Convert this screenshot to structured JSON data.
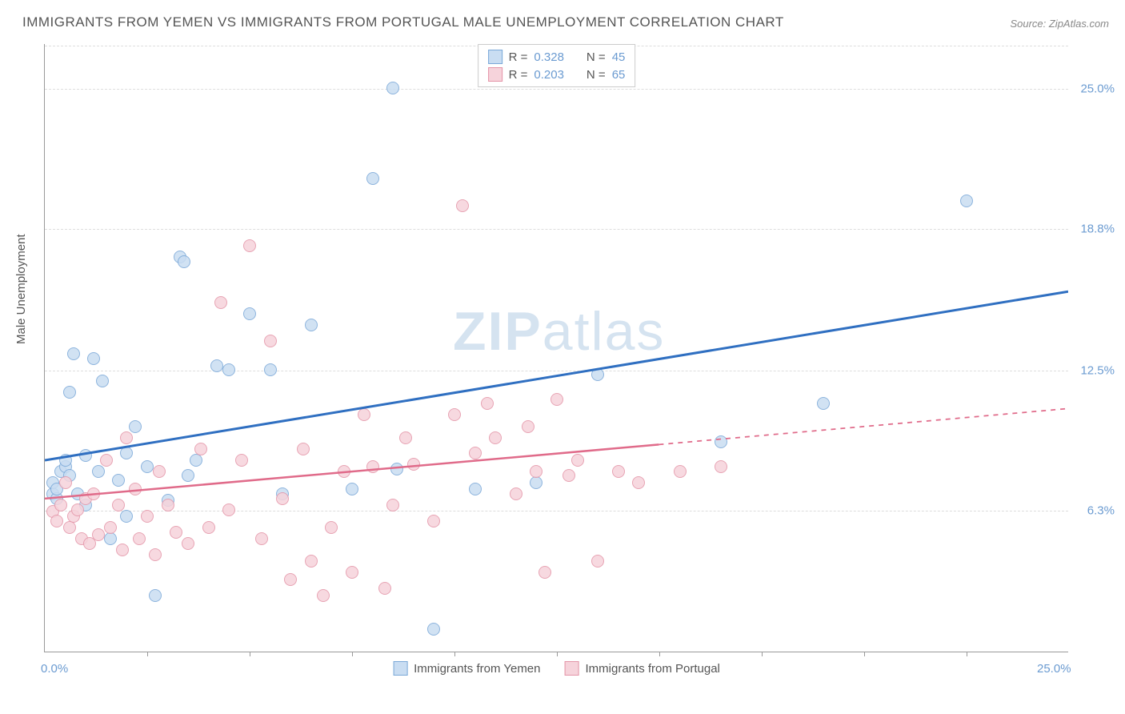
{
  "title": "IMMIGRANTS FROM YEMEN VS IMMIGRANTS FROM PORTUGAL MALE UNEMPLOYMENT CORRELATION CHART",
  "source": "Source: ZipAtlas.com",
  "watermark_prefix": "ZIP",
  "watermark_suffix": "atlas",
  "y_axis_label": "Male Unemployment",
  "chart": {
    "type": "scatter",
    "xlim": [
      0,
      25
    ],
    "ylim": [
      0,
      27
    ],
    "x_ticks": [
      0,
      25
    ],
    "x_tick_labels": [
      "0.0%",
      "25.0%"
    ],
    "y_grid": [
      6.3,
      12.5,
      18.8,
      25.0
    ],
    "y_tick_labels": [
      "6.3%",
      "12.5%",
      "18.8%",
      "25.0%"
    ],
    "x_minor_ticks": [
      2.5,
      5.0,
      7.5,
      10.0,
      12.5,
      15.0,
      17.5,
      20.0,
      22.5
    ],
    "background_color": "#ffffff",
    "grid_color": "#dddddd",
    "axis_color": "#999999",
    "tick_label_color": "#6b9bd1",
    "series": [
      {
        "name": "Immigrants from Yemen",
        "color_fill": "#c9ddf2",
        "color_stroke": "#7aa8d8",
        "marker_size": 16,
        "marker_opacity": 0.85,
        "R": "0.328",
        "N": "45",
        "trend": {
          "x1": 0,
          "y1": 8.5,
          "x2": 25,
          "y2": 16.0,
          "solid_until_x": 25,
          "color": "#2f6fc1",
          "width": 3
        },
        "points": [
          [
            0.2,
            7.0
          ],
          [
            0.2,
            7.5
          ],
          [
            0.3,
            6.8
          ],
          [
            0.4,
            8.0
          ],
          [
            0.5,
            8.2
          ],
          [
            0.5,
            8.5
          ],
          [
            0.6,
            11.5
          ],
          [
            0.7,
            13.2
          ],
          [
            0.8,
            7.0
          ],
          [
            1.0,
            8.7
          ],
          [
            1.2,
            13.0
          ],
          [
            1.4,
            12.0
          ],
          [
            1.6,
            5.0
          ],
          [
            1.8,
            7.6
          ],
          [
            2.0,
            6.0
          ],
          [
            2.2,
            10.0
          ],
          [
            2.5,
            8.2
          ],
          [
            2.7,
            2.5
          ],
          [
            3.0,
            6.7
          ],
          [
            3.3,
            17.5
          ],
          [
            3.4,
            17.3
          ],
          [
            3.5,
            7.8
          ],
          [
            3.7,
            8.5
          ],
          [
            4.2,
            12.7
          ],
          [
            4.5,
            12.5
          ],
          [
            5.0,
            15.0
          ],
          [
            5.5,
            12.5
          ],
          [
            5.8,
            7.0
          ],
          [
            6.5,
            14.5
          ],
          [
            7.5,
            7.2
          ],
          [
            8.0,
            21.0
          ],
          [
            8.5,
            25.0
          ],
          [
            8.6,
            8.1
          ],
          [
            9.5,
            1.0
          ],
          [
            10.5,
            7.2
          ],
          [
            12.0,
            7.5
          ],
          [
            13.5,
            12.3
          ],
          [
            16.5,
            9.3
          ],
          [
            19.0,
            11.0
          ],
          [
            22.5,
            20.0
          ],
          [
            1.0,
            6.5
          ],
          [
            0.3,
            7.2
          ],
          [
            0.6,
            7.8
          ],
          [
            1.3,
            8.0
          ],
          [
            2.0,
            8.8
          ]
        ]
      },
      {
        "name": "Immigrants from Portugal",
        "color_fill": "#f6d3db",
        "color_stroke": "#e495a8",
        "marker_size": 16,
        "marker_opacity": 0.85,
        "R": "0.203",
        "N": "65",
        "trend": {
          "x1": 0,
          "y1": 6.8,
          "x2": 25,
          "y2": 10.8,
          "solid_until_x": 15,
          "color": "#e06b8a",
          "width": 2.5
        },
        "points": [
          [
            0.2,
            6.2
          ],
          [
            0.3,
            5.8
          ],
          [
            0.4,
            6.5
          ],
          [
            0.5,
            7.5
          ],
          [
            0.6,
            5.5
          ],
          [
            0.7,
            6.0
          ],
          [
            0.8,
            6.3
          ],
          [
            0.9,
            5.0
          ],
          [
            1.0,
            6.8
          ],
          [
            1.1,
            4.8
          ],
          [
            1.2,
            7.0
          ],
          [
            1.3,
            5.2
          ],
          [
            1.5,
            8.5
          ],
          [
            1.6,
            5.5
          ],
          [
            1.8,
            6.5
          ],
          [
            1.9,
            4.5
          ],
          [
            2.0,
            9.5
          ],
          [
            2.2,
            7.2
          ],
          [
            2.3,
            5.0
          ],
          [
            2.5,
            6.0
          ],
          [
            2.7,
            4.3
          ],
          [
            2.8,
            8.0
          ],
          [
            3.0,
            6.5
          ],
          [
            3.2,
            5.3
          ],
          [
            3.5,
            4.8
          ],
          [
            3.8,
            9.0
          ],
          [
            4.0,
            5.5
          ],
          [
            4.3,
            15.5
          ],
          [
            4.5,
            6.3
          ],
          [
            4.8,
            8.5
          ],
          [
            5.0,
            18.0
          ],
          [
            5.3,
            5.0
          ],
          [
            5.5,
            13.8
          ],
          [
            5.8,
            6.8
          ],
          [
            6.0,
            3.2
          ],
          [
            6.3,
            9.0
          ],
          [
            6.5,
            4.0
          ],
          [
            6.8,
            2.5
          ],
          [
            7.0,
            5.5
          ],
          [
            7.3,
            8.0
          ],
          [
            7.5,
            3.5
          ],
          [
            7.8,
            10.5
          ],
          [
            8.0,
            8.2
          ],
          [
            8.3,
            2.8
          ],
          [
            8.5,
            6.5
          ],
          [
            8.8,
            9.5
          ],
          [
            9.0,
            8.3
          ],
          [
            9.5,
            5.8
          ],
          [
            10.0,
            10.5
          ],
          [
            10.2,
            19.8
          ],
          [
            10.5,
            8.8
          ],
          [
            10.8,
            11.0
          ],
          [
            11.0,
            9.5
          ],
          [
            11.5,
            7.0
          ],
          [
            11.8,
            10.0
          ],
          [
            12.0,
            8.0
          ],
          [
            12.2,
            3.5
          ],
          [
            12.5,
            11.2
          ],
          [
            12.8,
            7.8
          ],
          [
            13.0,
            8.5
          ],
          [
            13.5,
            4.0
          ],
          [
            14.0,
            8.0
          ],
          [
            14.5,
            7.5
          ],
          [
            15.5,
            8.0
          ],
          [
            16.5,
            8.2
          ]
        ]
      }
    ]
  },
  "legend_top": {
    "r_label": "R =",
    "n_label": "N ="
  }
}
